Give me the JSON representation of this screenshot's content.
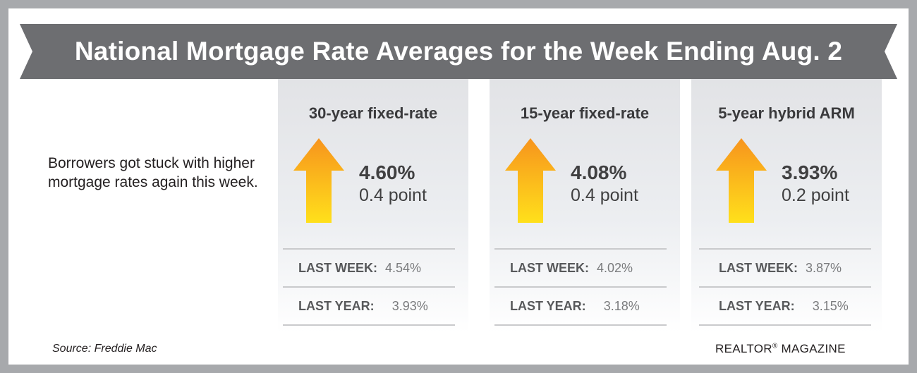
{
  "title": "National Mortgage Rate Averages for the Week Ending Aug. 2",
  "intro": "Borrowers got stuck with higher mortgage rates again this week.",
  "cards": [
    {
      "title": "30-year fixed-rate",
      "direction_icon": "arrow-up-icon",
      "rate": "4.60%",
      "change": "0.4 point",
      "last_week_label": "LAST WEEK:",
      "last_week_value": "4.54%",
      "last_year_label": "LAST YEAR:",
      "last_year_value": "3.93%"
    },
    {
      "title": "15-year fixed-rate",
      "direction_icon": "arrow-up-icon",
      "rate": "4.08%",
      "change": "0.4 point",
      "last_week_label": "LAST WEEK:",
      "last_week_value": "4.02%",
      "last_year_label": "LAST YEAR:",
      "last_year_value": "3.18%"
    },
    {
      "title": "5-year hybrid ARM",
      "direction_icon": "arrow-up-icon",
      "rate": "3.93%",
      "change": "0.2 point",
      "last_week_label": "LAST WEEK:",
      "last_week_value": "3.87%",
      "last_year_label": "LAST YEAR:",
      "last_year_value": "3.15%"
    }
  ],
  "source": "Source: Freddie Mac",
  "brand": {
    "name": "REALTOR",
    "mark": "®",
    "suffix": " MAGAZINE"
  },
  "colors": {
    "frame": "#a7a9ac",
    "banner": "#6d6e71",
    "arrow_top": "#f7941d",
    "arrow_bottom": "#ffe01b"
  }
}
